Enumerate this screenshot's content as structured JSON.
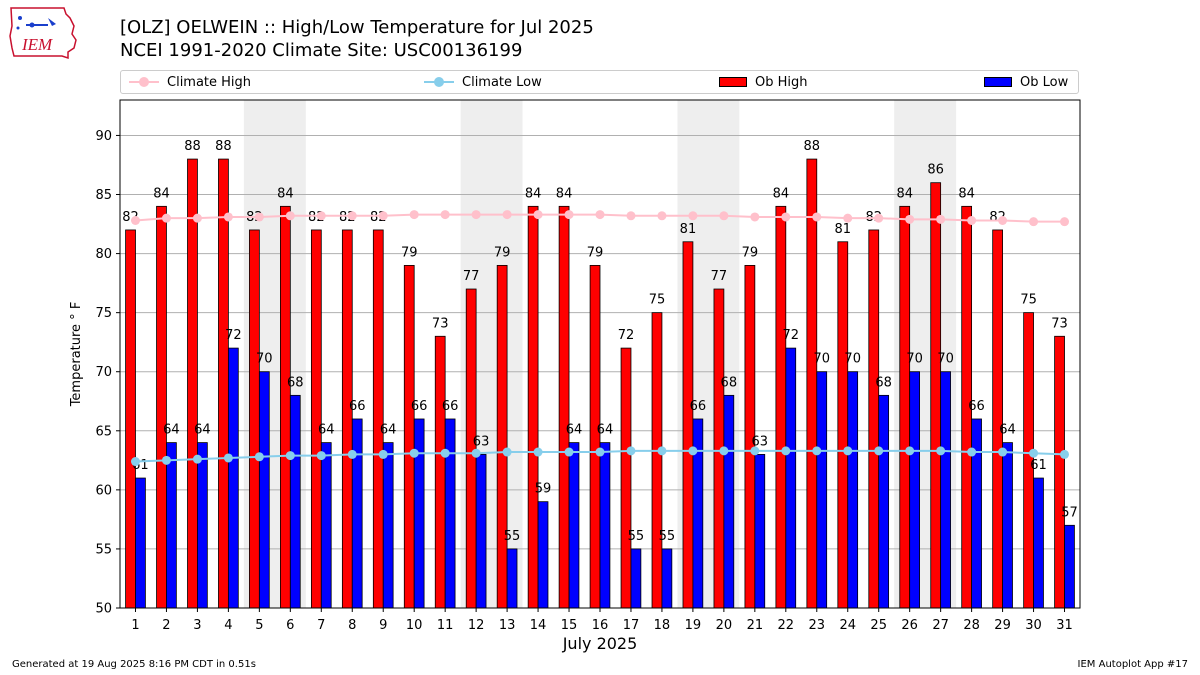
{
  "header": {
    "title_line1": "[OLZ] OELWEIN :: High/Low Temperature for Jul 2025",
    "title_line2": "NCEI 1991-2020 Climate Site: USC00136199",
    "logo_text": "IEM"
  },
  "footer": {
    "generated": "Generated at 19 Aug 2025 8:16 PM CDT in 0.51s",
    "app": "IEM Autoplot App #17"
  },
  "colors": {
    "ob_high": "#ff0000",
    "ob_low": "#0000ff",
    "climate_high": "#ffc0cb",
    "climate_low": "#87ceeb",
    "weekend_shade": "#eeeeee",
    "grid": "#b0b0b0"
  },
  "chart_data": {
    "type": "bar",
    "xlabel": "July 2025",
    "ylabel": "Temperature ° F",
    "ylim": [
      50,
      93
    ],
    "yticks": [
      50,
      55,
      60,
      65,
      70,
      75,
      80,
      85,
      90
    ],
    "grid": "horizontal",
    "legend_placement": "top",
    "categories": [
      "1",
      "2",
      "3",
      "4",
      "5",
      "6",
      "7",
      "8",
      "9",
      "10",
      "11",
      "12",
      "13",
      "14",
      "15",
      "16",
      "17",
      "18",
      "19",
      "20",
      "21",
      "22",
      "23",
      "24",
      "25",
      "26",
      "27",
      "28",
      "29",
      "30",
      "31"
    ],
    "shaded_days": [
      [
        5,
        6
      ],
      [
        12,
        13
      ],
      [
        19,
        20
      ],
      [
        26,
        27
      ]
    ],
    "series": [
      {
        "name": "Ob High",
        "kind": "bar",
        "values": [
          82,
          84,
          88,
          88,
          82,
          84,
          82,
          82,
          82,
          79,
          73,
          77,
          79,
          84,
          84,
          79,
          72,
          75,
          81,
          77,
          79,
          84,
          88,
          81,
          82,
          84,
          86,
          84,
          82,
          75,
          73
        ]
      },
      {
        "name": "Ob Low",
        "kind": "bar",
        "values": [
          61,
          64,
          64,
          72,
          70,
          68,
          64,
          66,
          64,
          66,
          66,
          63,
          55,
          59,
          64,
          64,
          55,
          55,
          66,
          68,
          63,
          72,
          70,
          70,
          68,
          70,
          70,
          66,
          64,
          61,
          57
        ]
      },
      {
        "name": "Climate High",
        "kind": "line",
        "values": [
          82.8,
          83.0,
          83.0,
          83.1,
          83.1,
          83.2,
          83.2,
          83.2,
          83.2,
          83.3,
          83.3,
          83.3,
          83.3,
          83.3,
          83.3,
          83.3,
          83.2,
          83.2,
          83.2,
          83.2,
          83.1,
          83.1,
          83.1,
          83.0,
          83.0,
          82.9,
          82.9,
          82.8,
          82.8,
          82.7,
          82.7
        ]
      },
      {
        "name": "Climate Low",
        "kind": "line",
        "values": [
          62.4,
          62.5,
          62.6,
          62.7,
          62.8,
          62.9,
          62.9,
          63.0,
          63.0,
          63.1,
          63.1,
          63.1,
          63.2,
          63.2,
          63.2,
          63.2,
          63.3,
          63.3,
          63.3,
          63.3,
          63.3,
          63.3,
          63.3,
          63.3,
          63.3,
          63.3,
          63.3,
          63.2,
          63.2,
          63.1,
          63.0
        ]
      }
    ]
  }
}
